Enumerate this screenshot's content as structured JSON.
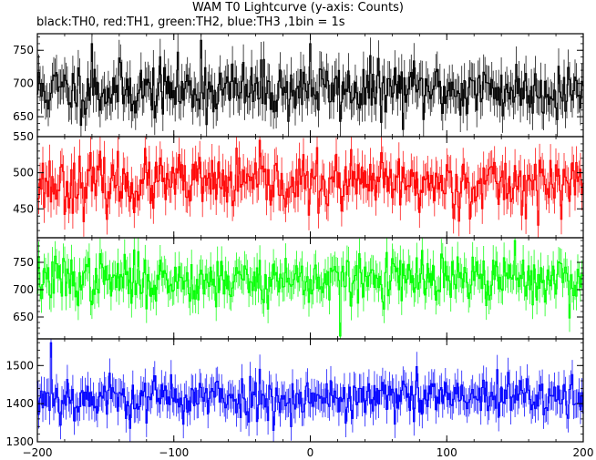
{
  "title": "WAM T0 Lightcurve (y-axis: Counts)",
  "subtitle": "black:TH0, red:TH1, green:TH2, blue:TH3 ,1bin = 1s",
  "chart_data": {
    "type": "line",
    "x_range": [
      -200,
      200
    ],
    "x_ticks": [
      -200,
      -100,
      0,
      100,
      200
    ],
    "x_tick_labels": [
      "−200",
      "−100",
      "0",
      "100",
      "200"
    ],
    "panels": [
      {
        "color": "#000000",
        "ylim": [
          620,
          775
        ],
        "y_ticks": [
          650,
          700,
          750
        ],
        "mean": 690,
        "noise": 28,
        "seed": 11,
        "features": [
          {
            "x": 0,
            "value": 760
          },
          {
            "x": -160,
            "value": 760
          },
          {
            "x": -80,
            "value": 765
          }
        ]
      },
      {
        "color": "#ff0000",
        "ylim": [
          410,
          550
        ],
        "y_ticks": [
          450,
          500,
          550
        ],
        "mean": 485,
        "noise": 26,
        "seed": 23,
        "features": []
      },
      {
        "color": "#00ff00",
        "ylim": [
          610,
          795
        ],
        "y_ticks": [
          650,
          700,
          750
        ],
        "mean": 718,
        "noise": 30,
        "seed": 37,
        "features": [
          {
            "x": 22,
            "value": 615
          },
          {
            "x": 150,
            "value": 790
          }
        ]
      },
      {
        "color": "#0000ff",
        "ylim": [
          1300,
          1570
        ],
        "y_ticks": [
          1300,
          1400,
          1500
        ],
        "mean": 1415,
        "noise": 40,
        "seed": 53,
        "features": [
          {
            "x": -190,
            "value": 1560
          }
        ]
      }
    ]
  }
}
